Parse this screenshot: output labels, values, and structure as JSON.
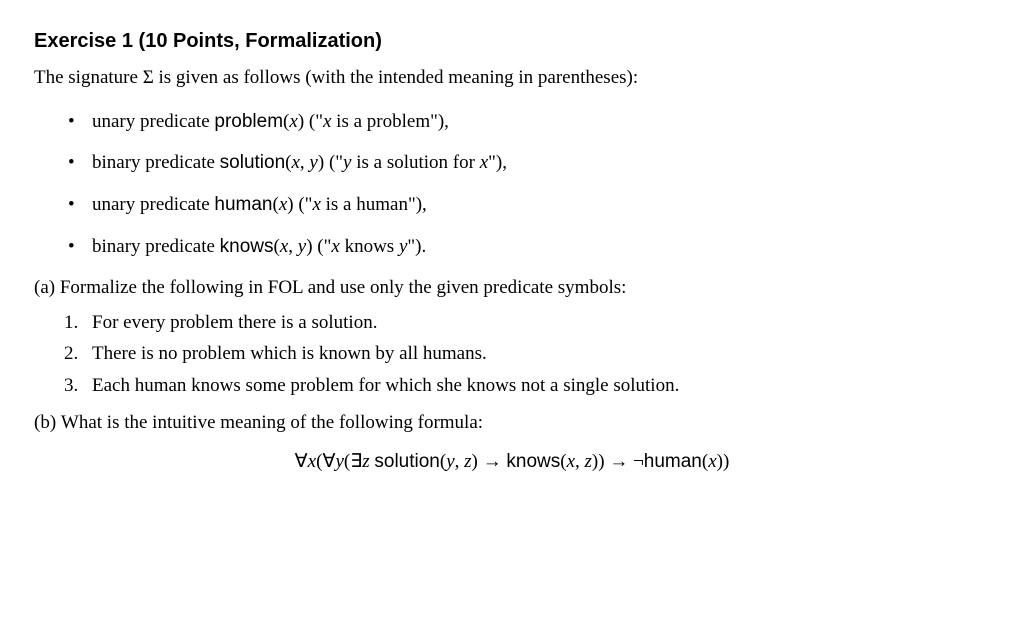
{
  "title": "Exercise 1 (10 Points, Formalization)",
  "intro_prefix": "The signature ",
  "intro_sigma": "Σ",
  "intro_suffix": " is given as follows (with the intended meaning in parentheses):",
  "bullets": {
    "b1": {
      "lead": "unary predicate ",
      "pred": "problem",
      "args_open": "(",
      "arg1": "x",
      "args_close": ")",
      "desc_open": " (\"",
      "desc_var": "x",
      "desc_rest": " is a problem\"),"
    },
    "b2": {
      "lead": "binary predicate ",
      "pred": "solution",
      "args_open": "(",
      "arg1": "x",
      "comma": ", ",
      "arg2": "y",
      "args_close": ")",
      "desc_open": " (\"",
      "desc_var": "y",
      "desc_mid": " is a solution for ",
      "desc_var2": "x",
      "desc_rest": "\"),"
    },
    "b3": {
      "lead": "unary predicate ",
      "pred": "human",
      "args_open": "(",
      "arg1": "x",
      "args_close": ")",
      "desc_open": " (\"",
      "desc_var": "x",
      "desc_rest": " is a human\"),"
    },
    "b4": {
      "lead": "binary predicate ",
      "pred": "knows",
      "args_open": "(",
      "arg1": "x",
      "comma": ", ",
      "arg2": "y",
      "args_close": ")",
      "desc_open": " (\"",
      "desc_var": "x",
      "desc_mid": " knows ",
      "desc_var2": "y",
      "desc_rest": "\")."
    }
  },
  "part_a": {
    "label": "(a)",
    "text": "Formalize the following in FOL and use only the given predicate symbols:"
  },
  "items": {
    "i1": "For every problem there is a solution.",
    "i2": "There is no problem which is known by all humans.",
    "i3": "Each human knows some problem for which she knows not a single solution."
  },
  "part_b": {
    "label": "(b)",
    "text": "What is the intuitive meaning of the following formula:"
  },
  "formula": {
    "forall": "∀",
    "exists": "∃",
    "x": "x",
    "y": "y",
    "z": "z",
    "open": "(",
    "close": ")",
    "solution": "solution",
    "knows": "knows",
    "human": "human",
    "arrow": " → ",
    "neg": "¬",
    "comma": ", "
  }
}
